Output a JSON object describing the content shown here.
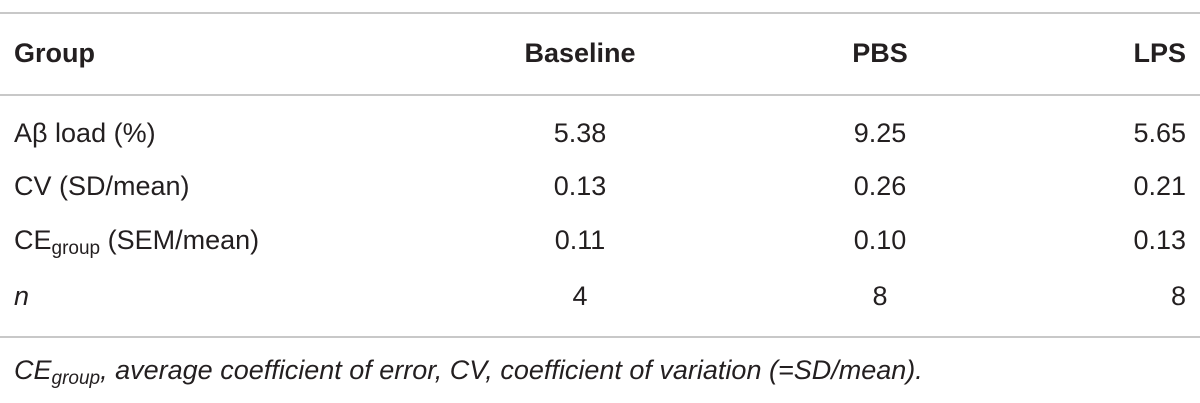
{
  "table": {
    "header": [
      "Group",
      "Baseline",
      "PBS",
      "LPS"
    ],
    "rows": [
      [
        {
          "main": "Aβ load (%)"
        },
        "5.38",
        "9.25",
        "5.65"
      ],
      [
        {
          "main": "CV (SD/mean)"
        },
        "0.13",
        "0.26",
        "0.21"
      ],
      [
        {
          "main": "CE",
          "sub": "group",
          "rest": " (SEM/mean)"
        },
        "0.11",
        "0.10",
        "0.13"
      ],
      [
        {
          "main": "n",
          "italic": true
        },
        "4",
        "8",
        "8"
      ]
    ],
    "footnote": {
      "main": "CE",
      "sub": "group",
      "rest": ", average coefficient of error, CV, coefficient of variation (=SD/mean)."
    }
  }
}
